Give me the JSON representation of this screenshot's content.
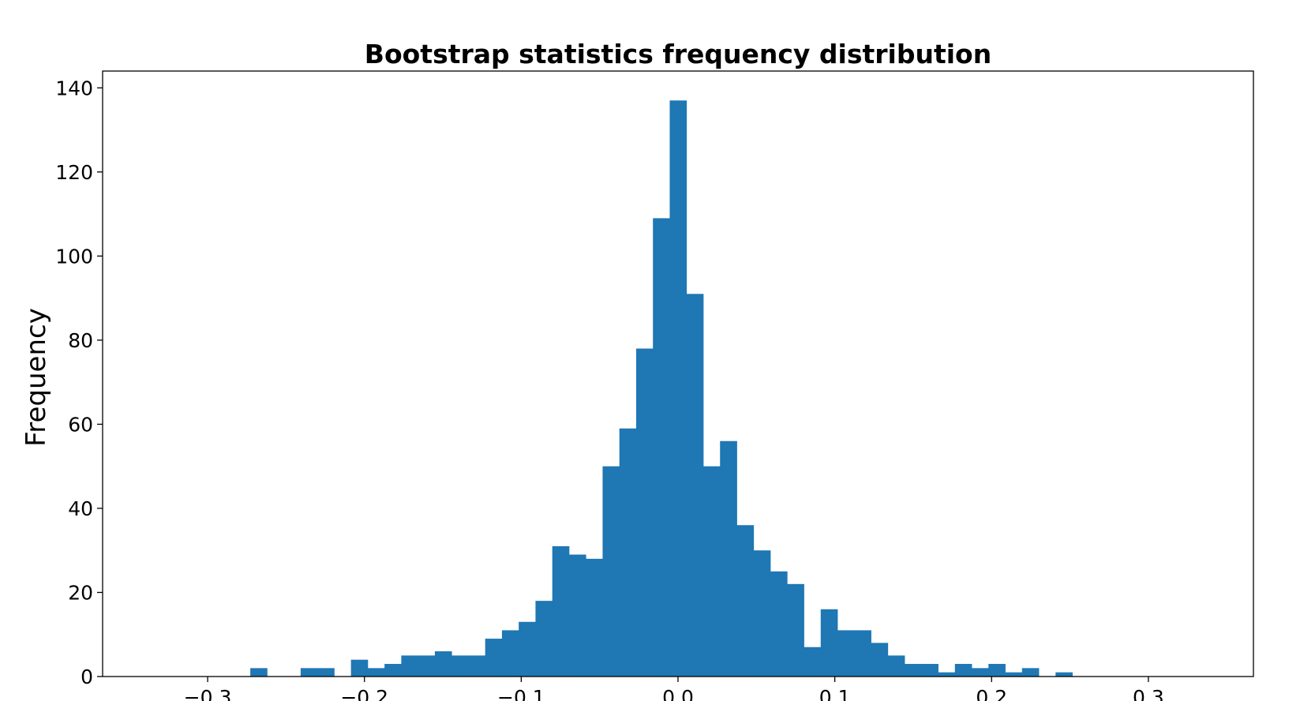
{
  "chart_data": {
    "type": "bar",
    "title": "Bootstrap statistics frequency distribution",
    "xlabel": "",
    "ylabel": "Frequency",
    "xlim": [
      -0.367,
      0.367
    ],
    "ylim": [
      0,
      144
    ],
    "bar_color": "#1f77b4",
    "grid": false,
    "bin_width": 0.0107,
    "bins": [
      {
        "x0": -0.2728,
        "count": 2
      },
      {
        "x0": -0.2407,
        "count": 2
      },
      {
        "x0": -0.23,
        "count": 2
      },
      {
        "x0": -0.2086,
        "count": 4
      },
      {
        "x0": -0.1979,
        "count": 2
      },
      {
        "x0": -0.1872,
        "count": 3
      },
      {
        "x0": -0.1765,
        "count": 5
      },
      {
        "x0": -0.1658,
        "count": 5
      },
      {
        "x0": -0.1551,
        "count": 6
      },
      {
        "x0": -0.1444,
        "count": 5
      },
      {
        "x0": -0.1337,
        "count": 5
      },
      {
        "x0": -0.123,
        "count": 9
      },
      {
        "x0": -0.1123,
        "count": 11
      },
      {
        "x0": -0.1016,
        "count": 13
      },
      {
        "x0": -0.0909,
        "count": 18
      },
      {
        "x0": -0.0802,
        "count": 31
      },
      {
        "x0": -0.0695,
        "count": 29
      },
      {
        "x0": -0.0588,
        "count": 28
      },
      {
        "x0": -0.0481,
        "count": 50
      },
      {
        "x0": -0.0374,
        "count": 59
      },
      {
        "x0": -0.0267,
        "count": 78
      },
      {
        "x0": -0.016,
        "count": 109
      },
      {
        "x0": -0.0053,
        "count": 137
      },
      {
        "x0": 0.0054,
        "count": 91
      },
      {
        "x0": 0.0161,
        "count": 50
      },
      {
        "x0": 0.0268,
        "count": 56
      },
      {
        "x0": 0.0375,
        "count": 36
      },
      {
        "x0": 0.0482,
        "count": 30
      },
      {
        "x0": 0.0589,
        "count": 25
      },
      {
        "x0": 0.0696,
        "count": 22
      },
      {
        "x0": 0.0803,
        "count": 7
      },
      {
        "x0": 0.091,
        "count": 16
      },
      {
        "x0": 0.1017,
        "count": 11
      },
      {
        "x0": 0.1124,
        "count": 11
      },
      {
        "x0": 0.1231,
        "count": 8
      },
      {
        "x0": 0.1338,
        "count": 5
      },
      {
        "x0": 0.1445,
        "count": 3
      },
      {
        "x0": 0.1552,
        "count": 3
      },
      {
        "x0": 0.1659,
        "count": 1
      },
      {
        "x0": 0.1766,
        "count": 3
      },
      {
        "x0": 0.1873,
        "count": 2
      },
      {
        "x0": 0.198,
        "count": 3
      },
      {
        "x0": 0.2087,
        "count": 1
      },
      {
        "x0": 0.2194,
        "count": 2
      },
      {
        "x0": 0.2408,
        "count": 1
      }
    ],
    "x_ticks": [
      {
        "value": -0.3,
        "label": "−0.3"
      },
      {
        "value": -0.2,
        "label": "−0.2"
      },
      {
        "value": -0.1,
        "label": "−0.1"
      },
      {
        "value": 0.0,
        "label": "0.0"
      },
      {
        "value": 0.1,
        "label": "0.1"
      },
      {
        "value": 0.2,
        "label": "0.2"
      },
      {
        "value": 0.3,
        "label": "0.3"
      }
    ],
    "y_ticks": [
      {
        "value": 0,
        "label": "0"
      },
      {
        "value": 20,
        "label": "20"
      },
      {
        "value": 40,
        "label": "40"
      },
      {
        "value": 60,
        "label": "60"
      },
      {
        "value": 80,
        "label": "80"
      },
      {
        "value": 100,
        "label": "100"
      },
      {
        "value": 120,
        "label": "120"
      },
      {
        "value": 140,
        "label": "140"
      }
    ]
  }
}
